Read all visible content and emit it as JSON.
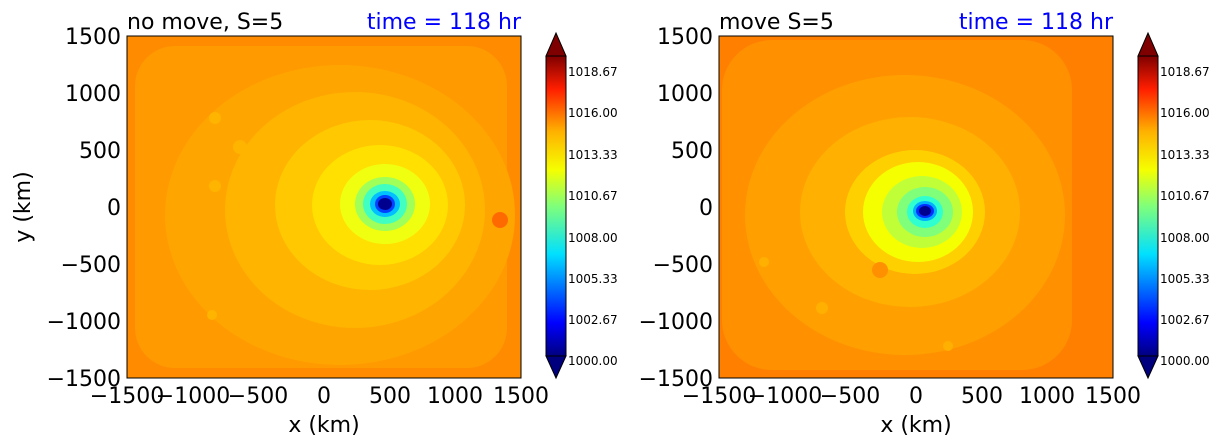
{
  "chart_data": [
    {
      "type": "heatmap",
      "title_left": "no move, S=5",
      "title_right": "time = 118 hr",
      "xlabel": "x (km)",
      "ylabel": "y (km)",
      "xlim": [
        -1500,
        1500
      ],
      "ylim": [
        -1500,
        1500
      ],
      "x_ticks": [
        -1500,
        -1000,
        -500,
        0,
        500,
        1000,
        1500
      ],
      "y_ticks": [
        1500,
        1000,
        500,
        0,
        -500,
        -1000,
        -1500
      ],
      "x_tick_labels": [
        "−1500",
        "−1000",
        "−500",
        "0",
        "500",
        "1000",
        "1500"
      ],
      "y_tick_labels": [
        "1500",
        "1000",
        "500",
        "0",
        "−500",
        "−1000",
        "−1500"
      ],
      "colorbar_ticks": [
        "1018.67",
        "1016.00",
        "1013.33",
        "1010.67",
        "1008.00",
        "1005.33",
        "1002.67",
        "1000.00"
      ],
      "colorbar_range": [
        1000,
        1020
      ],
      "colormap": "jet",
      "background_value": 1016.6,
      "low_center": [
        430,
        30
      ],
      "low_min_value": 1000.0
    },
    {
      "type": "heatmap",
      "title_left": "move S=5",
      "title_right": "time = 118 hr",
      "xlabel": "x (km)",
      "ylabel": "",
      "xlim": [
        -1500,
        1500
      ],
      "ylim": [
        -1500,
        1500
      ],
      "x_ticks": [
        -1500,
        -1000,
        -500,
        0,
        500,
        1000,
        1500
      ],
      "y_ticks": [
        1500,
        1000,
        500,
        0,
        -500,
        -1000,
        -1500
      ],
      "x_tick_labels": [
        "−1500",
        "−1000",
        "−500",
        "0",
        "500",
        "1000",
        "1500"
      ],
      "y_tick_labels": [
        "1500",
        "1000",
        "500",
        "0",
        "−500",
        "−1000",
        "−1500"
      ],
      "colorbar_ticks": [
        "1018.67",
        "1016.00",
        "1013.33",
        "1010.67",
        "1008.00",
        "1005.33",
        "1002.67",
        "1000.00"
      ],
      "colorbar_range": [
        1000,
        1020
      ],
      "colormap": "jet",
      "background_value": 1016.6,
      "low_center": [
        80,
        -40
      ],
      "low_min_value": 1000.0
    }
  ],
  "colors": {
    "title_right": "#0000ff",
    "text": "#000000"
  }
}
